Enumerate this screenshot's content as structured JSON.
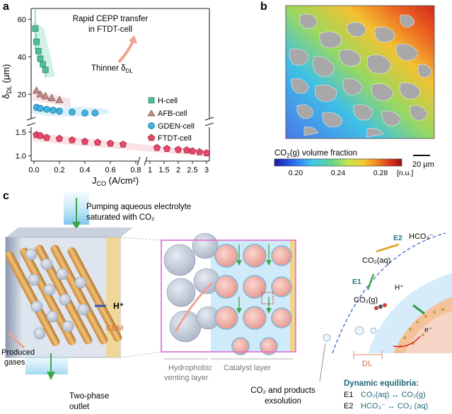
{
  "panel_labels": {
    "a": "a",
    "b": "b",
    "c": "c"
  },
  "panel_a": {
    "annotation_top": [
      "Rapid CEPP transfer",
      "in FTDT-cell"
    ],
    "annotation_thinner_prefix": "Thinner δ",
    "annotation_thinner_sub": "DL",
    "ylabel_main": "δ",
    "ylabel_sub": "DL",
    "ylabel_unit": " (μm)",
    "xlabel_main": "J",
    "xlabel_sub": "CO",
    "xlabel_unit": " (A/cm²)",
    "legend": [
      "H-cell",
      "AFB-cell",
      "GDEN-cell",
      "FTDT-cell"
    ]
  },
  "chart_data": {
    "type": "scatter",
    "x_axis": {
      "label": "J_CO (A/cm²)",
      "broken": true,
      "segment1_range": [
        0,
        0.8
      ],
      "segment1_ticks": [
        "0.0",
        "0.2",
        "0.4",
        "0.6",
        "0.8"
      ],
      "segment2_range": [
        1,
        3
      ],
      "segment2_ticks": [
        "1",
        "1.5",
        "2",
        "2.5",
        "3"
      ]
    },
    "y_axis": {
      "label": "δ_DL (μm)",
      "broken": true,
      "upper_range": [
        10,
        65
      ],
      "upper_ticks": [
        "20",
        "40",
        "60"
      ],
      "lower_range": [
        0.95,
        1.6
      ],
      "lower_ticks": [
        "1.0",
        "1.5"
      ]
    },
    "series": [
      {
        "name": "H-cell",
        "color": "#4dbf94",
        "marker": "square",
        "x": [
          0.01,
          0.02,
          0.035,
          0.05,
          0.07,
          0.09
        ],
        "y": [
          55,
          48,
          43,
          39,
          36,
          33
        ],
        "err": [
          11,
          4,
          3,
          3,
          3,
          4
        ]
      },
      {
        "name": "AFB-cell",
        "color": "#c48a88",
        "marker": "triangle",
        "x": [
          0.02,
          0.05,
          0.09,
          0.14,
          0.2
        ],
        "y": [
          22,
          20,
          19,
          18,
          17
        ]
      },
      {
        "name": "GDEN-cell",
        "color": "#3fb4e4",
        "marker": "circle",
        "x": [
          0.02,
          0.05,
          0.1,
          0.15,
          0.2,
          0.3,
          0.4,
          0.48
        ],
        "y": [
          13,
          12.5,
          12,
          11.5,
          11,
          10.5,
          10,
          10
        ]
      },
      {
        "name": "FTDT-cell",
        "color": "#e8476a",
        "marker": "pentagon",
        "x": [
          0.02,
          0.05,
          0.1,
          0.2,
          0.3,
          0.4,
          0.5,
          0.6,
          0.7,
          1.25,
          1.6,
          2.0,
          2.3,
          2.5,
          2.75,
          3.0
        ],
        "y": [
          1.44,
          1.42,
          1.38,
          1.36,
          1.33,
          1.3,
          1.28,
          1.26,
          1.24,
          1.17,
          1.15,
          1.13,
          1.12,
          1.1,
          1.08,
          1.06
        ]
      }
    ]
  },
  "panel_b": {
    "colorbar_title_prefix": "CO",
    "colorbar_title_sub": "2",
    "colorbar_title_suffix": "(g) volume fraction",
    "ticks": [
      "0.20",
      "0.24",
      "0.28"
    ],
    "unit": "[n.u.]",
    "scalebar": "20 μm",
    "colors": [
      "#1a1aa8",
      "#2f6cf0",
      "#3ec8ee",
      "#5fd68a",
      "#c8e64a",
      "#f6c730",
      "#f07a20",
      "#d62c1a",
      "#9a1010"
    ]
  },
  "panel_c": {
    "pump_text": [
      "Pumping aqueous electrolyte",
      "saturated with CO₂"
    ],
    "h_plus": "H⁺",
    "cem": "CEM",
    "produced_gases": [
      "Produced",
      "gases"
    ],
    "two_phase": [
      "Two-phase",
      "outlet"
    ],
    "hydrophobic": [
      "Hydrophobic",
      "venting layer"
    ],
    "catalyst": "Catalyst layer",
    "hco3": "HCO₃⁻",
    "e2": "E2",
    "e1": "E1",
    "co2aq": "CO₂(aq)",
    "co2g": "CO₂(g)",
    "h_plus_small": "H⁺",
    "e_minus": "e⁻",
    "dl": "DL",
    "exsolution": [
      "CO₂ and products",
      "exsolution"
    ],
    "equilibria_title": "Dynamic equilibria:",
    "eq1_label": "E1",
    "eq1": "CO₂(aq) ↔ CO₂(g)",
    "eq2_label": "E2",
    "eq2": "HCO₃⁻ ↔  CO₂ (aq)"
  }
}
